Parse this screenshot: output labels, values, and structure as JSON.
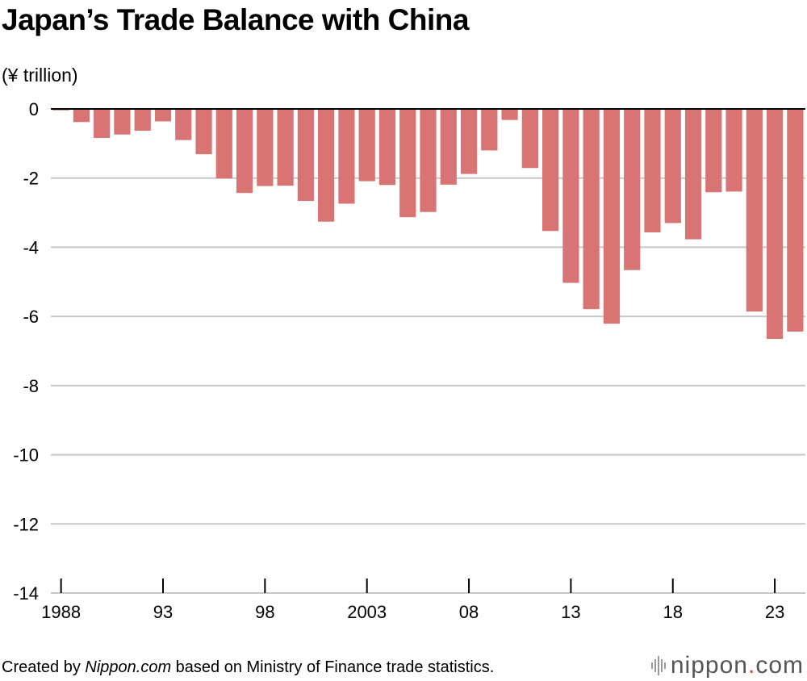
{
  "chart_data": {
    "type": "bar",
    "title": "Japan’s Trade Balance with China",
    "ylabel": "(¥ trillion)",
    "ylim": [
      -14,
      0
    ],
    "yticks": [
      "0",
      "-2",
      "-4",
      "-6",
      "-8",
      "-10",
      "-12",
      "-14"
    ],
    "ytick_values": [
      0,
      -2,
      -4,
      -6,
      -8,
      -10,
      -12,
      -14
    ],
    "categories": [
      1988,
      1989,
      1990,
      1991,
      1992,
      1993,
      1994,
      1995,
      1996,
      1997,
      1998,
      1999,
      2000,
      2001,
      2002,
      2003,
      2004,
      2005,
      2006,
      2007,
      2008,
      2009,
      2010,
      2011,
      2012,
      2013,
      2014,
      2015,
      2016,
      2017,
      2018,
      2019,
      2020,
      2021,
      2022,
      2023,
      2024
    ],
    "xtick_labels": [
      {
        "year": 1988,
        "label": "1988"
      },
      {
        "year": 1993,
        "label": "93"
      },
      {
        "year": 1998,
        "label": "98"
      },
      {
        "year": 2003,
        "label": "2003"
      },
      {
        "year": 2008,
        "label": "08"
      },
      {
        "year": 2013,
        "label": "13"
      },
      {
        "year": 2018,
        "label": "18"
      },
      {
        "year": 2023,
        "label": "23"
      }
    ],
    "values": [
      -0.04,
      -0.38,
      -0.84,
      -0.74,
      -0.63,
      -0.36,
      -0.9,
      -1.31,
      -2.01,
      -2.43,
      -2.23,
      -2.22,
      -2.66,
      -3.26,
      -2.74,
      -2.09,
      -2.2,
      -3.13,
      -2.98,
      -2.19,
      -1.88,
      -1.2,
      -0.32,
      -1.71,
      -3.53,
      -5.03,
      -5.79,
      -6.21,
      -4.66,
      -3.57,
      -3.3,
      -3.77,
      -2.41,
      -2.39,
      -5.86,
      -6.65,
      -6.44
    ],
    "bar_color": "#d97474",
    "grid": true
  },
  "footer": {
    "prefix": "Created by ",
    "source_name": "Nippon.com",
    "suffix": " based on Ministry of Finance trade statistics."
  },
  "logo": {
    "name": "nippon",
    "dot": ".",
    "tld": "com",
    "accent": "#e03c31"
  }
}
